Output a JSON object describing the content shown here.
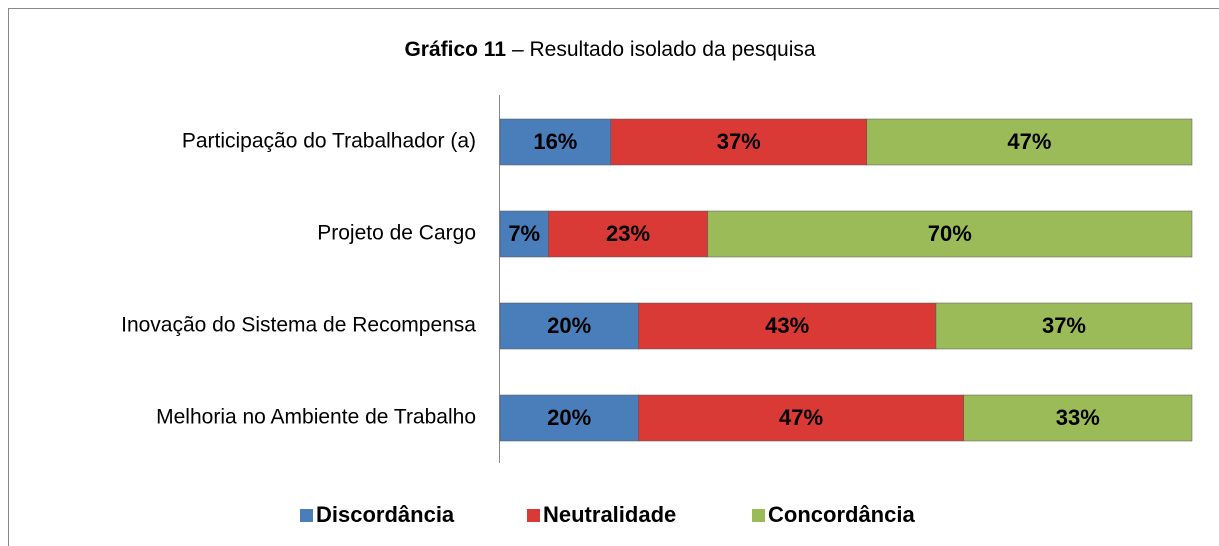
{
  "chart_data": {
    "type": "stacked_bar_horizontal",
    "title": [
      "Gráfico 11",
      "– Resultado isolado da pesquisa"
    ],
    "categories": [
      "Participação do Trabalhador (a)",
      "Projeto de Cargo",
      "Inovação do Sistema de Recompensa",
      "Melhoria no Ambiente de Trabalho"
    ],
    "series": [
      {
        "name": "Discordância",
        "color": "#4a7ebb",
        "values": [
          16,
          7,
          20,
          20
        ],
        "value_labels": [
          "16%",
          "7%",
          "20%",
          "20%"
        ]
      },
      {
        "name": "Neutralidade",
        "color": "#d93a36",
        "values": [
          37,
          23,
          43,
          47
        ],
        "value_labels": [
          "37%",
          "23%",
          "43%",
          "47%"
        ]
      },
      {
        "name": "Concordância",
        "color": "#9bbb59",
        "values": [
          47,
          70,
          37,
          33
        ],
        "value_labels": [
          "47%",
          "70%",
          "37%",
          "33%"
        ]
      }
    ],
    "legend": "bottom"
  }
}
